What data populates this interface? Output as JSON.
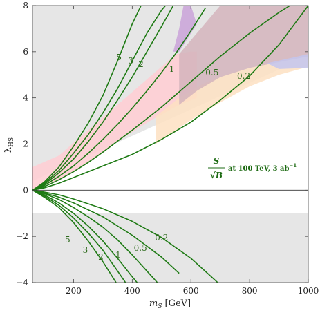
{
  "chart_data": {
    "type": "line",
    "xlabel_main": "m",
    "xlabel_sub": "S",
    "xlabel_unit": " [GeV]",
    "ylabel_main": "λ",
    "ylabel_sub": "HS",
    "xlim": [
      60,
      1000
    ],
    "ylim": [
      -4,
      8
    ],
    "xticks": [
      200,
      400,
      600,
      800,
      1000
    ],
    "yticks": [
      -4,
      -2,
      0,
      2,
      4,
      6,
      8
    ],
    "grid": false,
    "annotation": {
      "numerator": "S",
      "denominator": "√B",
      "text": "at 100 TeV, 3 ab",
      "superscript": "−1"
    },
    "colors": {
      "contour": "#1e7a14",
      "gray_region": "#e6e6e6",
      "pink_region": "#ffcdd2",
      "peach_region": "#fde0c2",
      "purple_region": "#c9a2d8",
      "blue_region": "#c3c6ee",
      "overlap_region": "#d4b4bc",
      "zero_line": "#333333"
    },
    "shaded_regions": [
      {
        "color_key": "gray_region",
        "x": [
          60,
          1000,
          1000,
          60
        ],
        "y": [
          8,
          8,
          5.8,
          0.4
        ]
      },
      {
        "color_key": "gray_region",
        "x": [
          60,
          1000,
          1000,
          60
        ],
        "y": [
          -1,
          -1,
          -4,
          -4
        ]
      },
      {
        "color_key": "pink_region",
        "x": [
          60,
          150,
          250,
          350,
          450,
          550,
          600,
          620,
          620,
          560,
          460,
          360,
          260,
          160,
          60
        ],
        "y": [
          1.0,
          1.5,
          2.6,
          3.7,
          4.8,
          5.9,
          6.0,
          6.0,
          4.0,
          3.7,
          3.0,
          2.2,
          1.3,
          0.5,
          0
        ]
      },
      {
        "color_key": "peach_region",
        "x": [
          480,
          560,
          640,
          720,
          800,
          880,
          960,
          1000,
          1000,
          900,
          800,
          700,
          620,
          560,
          480
        ],
        "y": [
          3.2,
          4.0,
          4.6,
          5.0,
          5.3,
          5.55,
          5.75,
          5.8,
          5.35,
          5.0,
          4.5,
          3.8,
          3.2,
          2.7,
          2.0
        ]
      },
      {
        "color_key": "overlap_region",
        "x": [
          560,
          620,
          700,
          800,
          900,
          1000,
          1000,
          900,
          800,
          700,
          620,
          560
        ],
        "y": [
          5.9,
          6.8,
          8,
          8,
          8,
          8,
          5.8,
          5.55,
          5.3,
          4.9,
          4.3,
          3.7
        ]
      },
      {
        "color_key": "purple_region",
        "x": [
          540,
          560,
          575,
          600,
          620,
          590,
          560
        ],
        "y": [
          6.0,
          7.0,
          8,
          8,
          7.2,
          6.6,
          6.0
        ]
      },
      {
        "color_key": "blue_region",
        "x": [
          860,
          1000,
          1000,
          900
        ],
        "y": [
          5.5,
          5.9,
          5.3,
          5.25
        ]
      }
    ],
    "series": [
      {
        "label": "5",
        "x": [
          60,
          100,
          150,
          200,
          250,
          300,
          350,
          400,
          430,
          460
        ],
        "y": [
          0,
          0.35,
          1.0,
          1.9,
          2.9,
          4.1,
          5.6,
          7.2,
          8,
          8.8
        ],
        "label_x": 355,
        "label_y": 5.75
      },
      {
        "label": "3",
        "x": [
          60,
          100,
          150,
          200,
          250,
          300,
          350,
          400,
          450,
          500,
          520
        ],
        "y": [
          0,
          0.3,
          0.85,
          1.6,
          2.4,
          3.35,
          4.4,
          5.6,
          6.8,
          7.8,
          8.1
        ],
        "label_x": 395,
        "label_y": 5.6
      },
      {
        "label": "2",
        "x": [
          60,
          100,
          150,
          200,
          250,
          300,
          350,
          400,
          450,
          500,
          540
        ],
        "y": [
          0,
          0.25,
          0.75,
          1.35,
          2.1,
          2.95,
          3.9,
          4.9,
          6.0,
          7.1,
          8.0
        ],
        "label_x": 430,
        "label_y": 5.45
      },
      {
        "label": "1",
        "x": [
          60,
          100,
          150,
          200,
          250,
          300,
          350,
          400,
          450,
          500,
          550,
          600,
          650
        ],
        "y": [
          0,
          0.2,
          0.6,
          1.05,
          1.6,
          2.2,
          2.85,
          3.55,
          4.3,
          5.1,
          5.95,
          6.9,
          7.9
        ],
        "label_x": 535,
        "label_y": 5.25
      },
      {
        "label": "0.5",
        "x": [
          60,
          100,
          150,
          200,
          250,
          300,
          400,
          500,
          600,
          700,
          800,
          900,
          950
        ],
        "y": [
          0,
          0.15,
          0.45,
          0.8,
          1.2,
          1.65,
          2.6,
          3.6,
          4.7,
          5.8,
          6.8,
          7.7,
          8.1
        ],
        "label_x": 672,
        "label_y": 5.1
      },
      {
        "label": "0.2",
        "x": [
          60,
          100,
          150,
          200,
          300,
          400,
          500,
          600,
          700,
          800,
          900,
          1000
        ],
        "y": [
          0,
          0.1,
          0.3,
          0.55,
          1.05,
          1.55,
          2.2,
          2.95,
          3.9,
          4.95,
          6.3,
          8.0
        ],
        "label_x": 780,
        "label_y": 4.95
      },
      {
        "label": "5",
        "x": [
          60,
          100,
          150,
          200,
          250,
          300,
          350
        ],
        "y": [
          0,
          -0.3,
          -0.75,
          -1.4,
          -2.2,
          -3.1,
          -4.1
        ],
        "label_x": 180,
        "label_y": -2.15
      },
      {
        "label": "3",
        "x": [
          60,
          100,
          150,
          200,
          250,
          300,
          350,
          380
        ],
        "y": [
          0,
          -0.25,
          -0.65,
          -1.2,
          -1.85,
          -2.6,
          -3.5,
          -4.05
        ],
        "label_x": 240,
        "label_y": -2.6
      },
      {
        "label": "2",
        "x": [
          60,
          100,
          150,
          200,
          250,
          300,
          350,
          400,
          430
        ],
        "y": [
          0,
          -0.2,
          -0.55,
          -1.0,
          -1.55,
          -2.2,
          -2.95,
          -3.75,
          -4.2
        ],
        "label_x": 293,
        "label_y": -2.9
      },
      {
        "label": "1",
        "x": [
          60,
          100,
          150,
          200,
          250,
          300,
          350,
          400,
          450,
          500
        ],
        "y": [
          0,
          -0.15,
          -0.4,
          -0.75,
          -1.15,
          -1.6,
          -2.15,
          -2.8,
          -3.5,
          -4.2
        ],
        "label_x": 352,
        "label_y": -2.8
      },
      {
        "label": "0.5",
        "x": [
          60,
          100,
          150,
          200,
          300,
          400,
          500,
          560
        ],
        "y": [
          0,
          -0.12,
          -0.3,
          -0.55,
          -1.15,
          -1.95,
          -2.9,
          -3.6
        ],
        "label_x": 428,
        "label_y": -2.5
      },
      {
        "label": "0.2",
        "x": [
          60,
          100,
          150,
          200,
          300,
          400,
          500,
          600,
          700
        ],
        "y": [
          0,
          -0.08,
          -0.2,
          -0.38,
          -0.8,
          -1.35,
          -2.05,
          -2.95,
          -4.1
        ],
        "label_x": 500,
        "label_y": -2.05
      }
    ]
  }
}
